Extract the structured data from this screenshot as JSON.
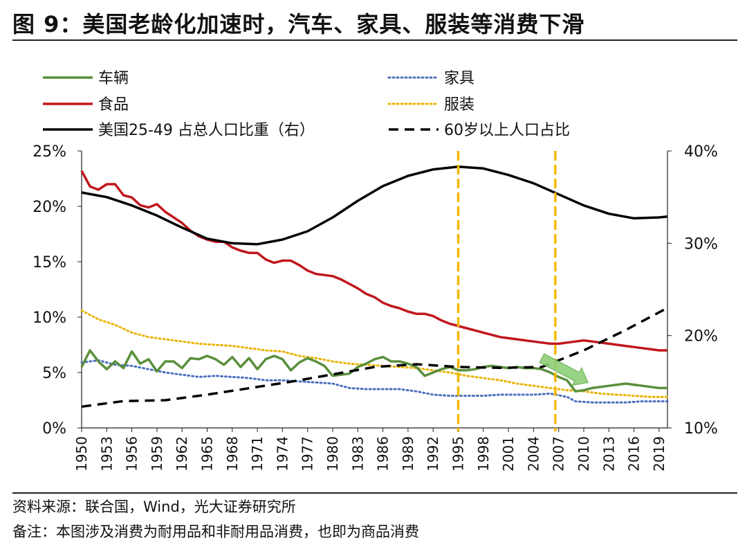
{
  "title": "图 9：美国老龄化加速时，汽车、家具、服装等消费下滑",
  "footer": {
    "source": "资料来源：联合国，Wind，光大证券研究所",
    "note": "备注：本图涉及消费为耐用品和非耐用品消费，也即为商品消费"
  },
  "colors": {
    "vehicles": "#5a8f3c",
    "food": "#c0171d",
    "furniture": "#4a6fbf",
    "clothing": "#e8b400",
    "prime_age": "#000000",
    "over60": "#000000",
    "marker": "#f5b800",
    "arrow": "#8ed07a"
  },
  "chart_data": {
    "type": "line",
    "title": "",
    "x_start": 1950,
    "x_end": 2020,
    "x_ticks": [
      "1950",
      "1953",
      "1956",
      "1959",
      "1962",
      "1965",
      "1968",
      "1971",
      "1974",
      "1977",
      "1980",
      "1983",
      "1986",
      "1989",
      "1992",
      "1995",
      "1998",
      "2001",
      "2004",
      "2007",
      "2010",
      "2013",
      "2016",
      "2019"
    ],
    "left_axis": {
      "range": [
        0,
        25
      ],
      "ticks": [
        "0%",
        "5%",
        "10%",
        "15%",
        "20%",
        "25%"
      ]
    },
    "right_axis": {
      "range": [
        10,
        40
      ],
      "ticks": [
        "10%",
        "20%",
        "30%",
        "40%"
      ]
    },
    "series": [
      {
        "key": "vehicles",
        "name": "车辆",
        "axis": "left",
        "style": "solid",
        "points": [
          [
            1950,
            5.5
          ],
          [
            1951,
            7.0
          ],
          [
            1952,
            6.0
          ],
          [
            1953,
            5.3
          ],
          [
            1954,
            6.0
          ],
          [
            1955,
            5.4
          ],
          [
            1956,
            6.9
          ],
          [
            1957,
            5.8
          ],
          [
            1958,
            6.2
          ],
          [
            1959,
            5.1
          ],
          [
            1960,
            6.0
          ],
          [
            1961,
            6.0
          ],
          [
            1962,
            5.4
          ],
          [
            1963,
            6.3
          ],
          [
            1964,
            6.2
          ],
          [
            1965,
            6.5
          ],
          [
            1966,
            6.2
          ],
          [
            1967,
            5.7
          ],
          [
            1968,
            6.4
          ],
          [
            1969,
            5.5
          ],
          [
            1970,
            6.3
          ],
          [
            1971,
            5.3
          ],
          [
            1972,
            6.2
          ],
          [
            1973,
            6.5
          ],
          [
            1974,
            6.2
          ],
          [
            1975,
            5.2
          ],
          [
            1976,
            5.9
          ],
          [
            1977,
            6.3
          ],
          [
            1978,
            6.0
          ],
          [
            1979,
            5.6
          ],
          [
            1980,
            4.7
          ],
          [
            1981,
            4.8
          ],
          [
            1982,
            4.9
          ],
          [
            1983,
            5.5
          ],
          [
            1984,
            5.8
          ],
          [
            1985,
            6.2
          ],
          [
            1986,
            6.4
          ],
          [
            1987,
            6.0
          ],
          [
            1988,
            6.0
          ],
          [
            1989,
            5.8
          ],
          [
            1990,
            5.5
          ],
          [
            1991,
            4.7
          ],
          [
            1992,
            5.0
          ],
          [
            1993,
            5.3
          ],
          [
            1994,
            5.5
          ],
          [
            1995,
            5.2
          ],
          [
            1996,
            5.2
          ],
          [
            1997,
            5.3
          ],
          [
            1998,
            5.5
          ],
          [
            1999,
            5.6
          ],
          [
            2000,
            5.5
          ],
          [
            2001,
            5.4
          ],
          [
            2002,
            5.5
          ],
          [
            2003,
            5.4
          ],
          [
            2004,
            5.4
          ],
          [
            2005,
            5.3
          ],
          [
            2006,
            5.0
          ],
          [
            2007,
            4.6
          ],
          [
            2008,
            4.3
          ],
          [
            2009,
            3.3
          ],
          [
            2010,
            3.4
          ],
          [
            2011,
            3.6
          ],
          [
            2012,
            3.7
          ],
          [
            2013,
            3.8
          ],
          [
            2014,
            3.9
          ],
          [
            2015,
            4.0
          ],
          [
            2016,
            3.9
          ],
          [
            2017,
            3.8
          ],
          [
            2018,
            3.7
          ],
          [
            2019,
            3.6
          ],
          [
            2020,
            3.6
          ]
        ]
      },
      {
        "key": "food",
        "name": "食品",
        "axis": "left",
        "style": "solid",
        "points": [
          [
            1950,
            23.2
          ],
          [
            1951,
            21.8
          ],
          [
            1952,
            21.5
          ],
          [
            1953,
            22.0
          ],
          [
            1954,
            22.0
          ],
          [
            1955,
            21.0
          ],
          [
            1956,
            20.8
          ],
          [
            1957,
            20.1
          ],
          [
            1958,
            19.9
          ],
          [
            1959,
            20.2
          ],
          [
            1960,
            19.5
          ],
          [
            1961,
            19.0
          ],
          [
            1962,
            18.5
          ],
          [
            1963,
            17.8
          ],
          [
            1964,
            17.3
          ],
          [
            1965,
            17.0
          ],
          [
            1966,
            16.8
          ],
          [
            1967,
            16.8
          ],
          [
            1968,
            16.3
          ],
          [
            1969,
            16.0
          ],
          [
            1970,
            15.8
          ],
          [
            1971,
            15.8
          ],
          [
            1972,
            15.2
          ],
          [
            1973,
            14.9
          ],
          [
            1974,
            15.1
          ],
          [
            1975,
            15.1
          ],
          [
            1976,
            14.7
          ],
          [
            1977,
            14.2
          ],
          [
            1978,
            13.9
          ],
          [
            1979,
            13.8
          ],
          [
            1980,
            13.7
          ],
          [
            1981,
            13.4
          ],
          [
            1982,
            13.0
          ],
          [
            1983,
            12.6
          ],
          [
            1984,
            12.1
          ],
          [
            1985,
            11.8
          ],
          [
            1986,
            11.3
          ],
          [
            1987,
            11.0
          ],
          [
            1988,
            10.8
          ],
          [
            1989,
            10.5
          ],
          [
            1990,
            10.3
          ],
          [
            1991,
            10.3
          ],
          [
            1992,
            10.1
          ],
          [
            1993,
            9.7
          ],
          [
            1994,
            9.4
          ],
          [
            1995,
            9.2
          ],
          [
            1996,
            9.0
          ],
          [
            1997,
            8.8
          ],
          [
            1998,
            8.6
          ],
          [
            1999,
            8.4
          ],
          [
            2000,
            8.2
          ],
          [
            2001,
            8.1
          ],
          [
            2002,
            8.0
          ],
          [
            2003,
            7.9
          ],
          [
            2004,
            7.8
          ],
          [
            2005,
            7.7
          ],
          [
            2006,
            7.6
          ],
          [
            2007,
            7.6
          ],
          [
            2008,
            7.7
          ],
          [
            2009,
            7.8
          ],
          [
            2010,
            7.9
          ],
          [
            2011,
            7.8
          ],
          [
            2012,
            7.7
          ],
          [
            2013,
            7.6
          ],
          [
            2014,
            7.5
          ],
          [
            2015,
            7.4
          ],
          [
            2016,
            7.3
          ],
          [
            2017,
            7.2
          ],
          [
            2018,
            7.1
          ],
          [
            2019,
            7.0
          ],
          [
            2020,
            7.0
          ]
        ]
      },
      {
        "key": "furniture",
        "name": "家具",
        "axis": "left",
        "style": "dotted",
        "points": [
          [
            1950,
            5.9
          ],
          [
            1952,
            6.1
          ],
          [
            1954,
            5.7
          ],
          [
            1956,
            5.6
          ],
          [
            1958,
            5.3
          ],
          [
            1960,
            5.0
          ],
          [
            1962,
            4.8
          ],
          [
            1964,
            4.6
          ],
          [
            1966,
            4.7
          ],
          [
            1968,
            4.6
          ],
          [
            1970,
            4.5
          ],
          [
            1972,
            4.3
          ],
          [
            1974,
            4.3
          ],
          [
            1976,
            4.2
          ],
          [
            1978,
            4.1
          ],
          [
            1980,
            4.0
          ],
          [
            1982,
            3.6
          ],
          [
            1984,
            3.5
          ],
          [
            1986,
            3.5
          ],
          [
            1988,
            3.5
          ],
          [
            1990,
            3.3
          ],
          [
            1992,
            3.0
          ],
          [
            1994,
            2.9
          ],
          [
            1996,
            2.9
          ],
          [
            1998,
            2.9
          ],
          [
            2000,
            3.0
          ],
          [
            2002,
            3.0
          ],
          [
            2004,
            3.0
          ],
          [
            2006,
            3.1
          ],
          [
            2008,
            2.8
          ],
          [
            2009,
            2.4
          ],
          [
            2011,
            2.3
          ],
          [
            2013,
            2.3
          ],
          [
            2015,
            2.3
          ],
          [
            2017,
            2.4
          ],
          [
            2019,
            2.4
          ],
          [
            2020,
            2.4
          ]
        ]
      },
      {
        "key": "clothing",
        "name": "服装",
        "axis": "left",
        "style": "dotted",
        "points": [
          [
            1950,
            10.6
          ],
          [
            1952,
            9.8
          ],
          [
            1954,
            9.3
          ],
          [
            1956,
            8.6
          ],
          [
            1958,
            8.2
          ],
          [
            1960,
            8.0
          ],
          [
            1962,
            7.8
          ],
          [
            1964,
            7.6
          ],
          [
            1966,
            7.5
          ],
          [
            1968,
            7.4
          ],
          [
            1970,
            7.2
          ],
          [
            1972,
            7.0
          ],
          [
            1974,
            6.9
          ],
          [
            1976,
            6.5
          ],
          [
            1978,
            6.3
          ],
          [
            1980,
            6.0
          ],
          [
            1982,
            5.8
          ],
          [
            1984,
            5.7
          ],
          [
            1986,
            5.6
          ],
          [
            1988,
            5.5
          ],
          [
            1990,
            5.4
          ],
          [
            1992,
            5.2
          ],
          [
            1994,
            5.0
          ],
          [
            1996,
            4.7
          ],
          [
            1998,
            4.5
          ],
          [
            2000,
            4.3
          ],
          [
            2002,
            4.0
          ],
          [
            2004,
            3.8
          ],
          [
            2006,
            3.6
          ],
          [
            2008,
            3.4
          ],
          [
            2010,
            3.3
          ],
          [
            2012,
            3.1
          ],
          [
            2014,
            3.0
          ],
          [
            2016,
            2.9
          ],
          [
            2018,
            2.8
          ],
          [
            2020,
            2.8
          ]
        ]
      },
      {
        "key": "prime_age",
        "name": "美国25-49 占总人口比重（右）",
        "axis": "right",
        "style": "solid",
        "points": [
          [
            1950,
            35.5
          ],
          [
            1953,
            35.0
          ],
          [
            1956,
            34.1
          ],
          [
            1959,
            33.0
          ],
          [
            1962,
            31.7
          ],
          [
            1965,
            30.5
          ],
          [
            1968,
            30.0
          ],
          [
            1971,
            29.9
          ],
          [
            1974,
            30.4
          ],
          [
            1977,
            31.3
          ],
          [
            1980,
            32.8
          ],
          [
            1983,
            34.6
          ],
          [
            1986,
            36.2
          ],
          [
            1989,
            37.3
          ],
          [
            1992,
            38.0
          ],
          [
            1995,
            38.3
          ],
          [
            1998,
            38.1
          ],
          [
            2001,
            37.4
          ],
          [
            2004,
            36.5
          ],
          [
            2007,
            35.3
          ],
          [
            2010,
            34.1
          ],
          [
            2013,
            33.2
          ],
          [
            2016,
            32.7
          ],
          [
            2019,
            32.8
          ],
          [
            2020,
            32.9
          ]
        ]
      },
      {
        "key": "over60",
        "name": "60岁以上人口占比",
        "axis": "right",
        "style": "dashed",
        "points": [
          [
            1950,
            12.3
          ],
          [
            1955,
            12.9
          ],
          [
            1960,
            13.0
          ],
          [
            1965,
            13.6
          ],
          [
            1970,
            14.3
          ],
          [
            1975,
            15.0
          ],
          [
            1980,
            15.8
          ],
          [
            1985,
            16.6
          ],
          [
            1990,
            16.9
          ],
          [
            1995,
            16.6
          ],
          [
            2000,
            16.5
          ],
          [
            2005,
            16.6
          ],
          [
            2010,
            18.4
          ],
          [
            2015,
            20.6
          ],
          [
            2020,
            23.0
          ]
        ]
      }
    ],
    "markers": [
      1995,
      2006.6
    ],
    "arrow": {
      "from": [
        2005,
        6.3
      ],
      "to": [
        2010.5,
        4.1
      ]
    },
    "legend": [
      {
        "key": "vehicles",
        "label": "车辆"
      },
      {
        "key": "furniture",
        "label": "家具"
      },
      {
        "key": "food",
        "label": "食品"
      },
      {
        "key": "clothing",
        "label": "服装"
      },
      {
        "key": "prime_age",
        "label": "美国25-49 占总人口比重（右）"
      },
      {
        "key": "over60",
        "label": "60岁以上人口占比"
      }
    ]
  }
}
